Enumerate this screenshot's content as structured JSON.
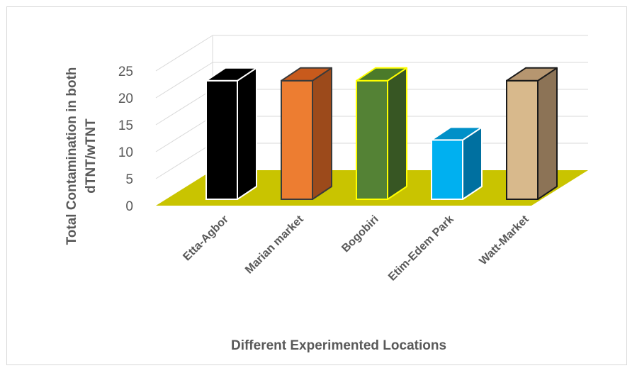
{
  "chart_data": {
    "type": "bar",
    "style": "3d-column",
    "categories": [
      "Etta-Agbor",
      "Marian market",
      "Bogobiri",
      "Etim-Edem Park",
      "Watt-Market"
    ],
    "values": [
      22,
      22,
      22,
      11,
      22
    ],
    "ylabel_line1": "Total Contamination in  both",
    "ylabel_line2": "dTNT/wTNT",
    "xlabel": "Different Experimented Locations",
    "ylim": [
      0,
      25
    ],
    "yticks": [
      0,
      5,
      10,
      15,
      20,
      25
    ],
    "grid": true,
    "legend": "none",
    "colors": {
      "floor": "#c9c400",
      "grid": "#d9d9d9",
      "bars": [
        {
          "front": "#000000",
          "side": "#000000",
          "top": "#000000",
          "stroke": "#ffffff"
        },
        {
          "front": "#ed7d31",
          "side": "#9c4a1b",
          "top": "#c85a1c",
          "stroke": "#3a3a3a"
        },
        {
          "front": "#548235",
          "side": "#375623",
          "top": "#4b7a2a",
          "stroke": "#ffff00"
        },
        {
          "front": "#00b0f0",
          "side": "#0070a0",
          "top": "#0090c8",
          "stroke": "#ffffff"
        },
        {
          "front": "#d8b98c",
          "side": "#8c7356",
          "top": "#b69670",
          "stroke": "#1a1a1a"
        }
      ]
    }
  }
}
